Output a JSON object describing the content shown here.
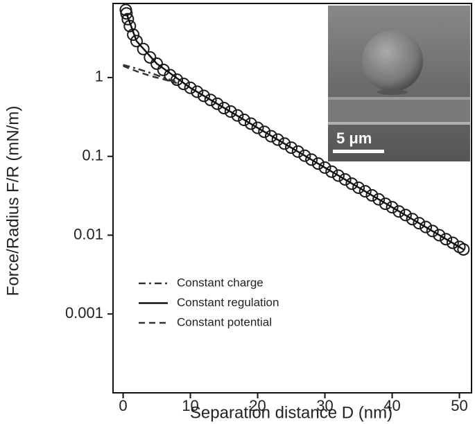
{
  "chart_data": {
    "type": "scatter",
    "xlabel": "Separation distance D (nm)",
    "ylabel": "Force/Radius F/R (mN/m)",
    "xlim": [
      -1.5,
      51.8
    ],
    "ylim": [
      0.0001,
      8.7
    ],
    "yscale": "log",
    "xticks": [
      0,
      10,
      20,
      30,
      40,
      50
    ],
    "yticks": [
      1,
      0.1,
      0.01,
      0.001
    ],
    "inset_scale_label": "5 μm",
    "legend": "lower left",
    "series": [
      {
        "style": "markers",
        "color": "#1a1a1a",
        "x": [
          0.4,
          0.5,
          0.7,
          1,
          1.5,
          2,
          3,
          4,
          5,
          6,
          7,
          8,
          9,
          10,
          11,
          12,
          13,
          14,
          15,
          16,
          17,
          18,
          19,
          20,
          21,
          22,
          23,
          24,
          25,
          26,
          27,
          28,
          29,
          30,
          31,
          32,
          33,
          34,
          35,
          36,
          37,
          38,
          39,
          40,
          41,
          42,
          43,
          44,
          45,
          46,
          47,
          48,
          49,
          50,
          50.6
        ],
        "values": [
          7.2,
          6.5,
          5.5,
          4.5,
          3.5,
          2.9,
          2.3,
          1.8,
          1.5,
          1.25,
          1.07,
          0.94,
          0.83,
          0.74,
          0.66,
          0.585,
          0.52,
          0.465,
          0.41,
          0.37,
          0.33,
          0.29,
          0.26,
          0.23,
          0.205,
          0.18,
          0.163,
          0.145,
          0.129,
          0.115,
          0.102,
          0.091,
          0.081,
          0.072,
          0.064,
          0.057,
          0.051,
          0.045,
          0.04,
          0.036,
          0.032,
          0.0285,
          0.025,
          0.0226,
          0.02,
          0.018,
          0.016,
          0.0142,
          0.0127,
          0.0113,
          0.01,
          0.0089,
          0.008,
          0.0071,
          0.0066
        ]
      },
      {
        "name": "Constant charge",
        "style": "dashdot",
        "color": "#333333",
        "x": [
          0,
          2,
          4,
          6,
          8
        ],
        "values": [
          1.45,
          1.3,
          1.15,
          1.0,
          0.88
        ]
      },
      {
        "name": "Constant regulation",
        "style": "solid",
        "color": "#111111",
        "x": [
          0.5,
          2,
          5,
          10,
          20,
          30,
          40,
          50.6
        ],
        "values": [
          6.5,
          2.9,
          1.5,
          0.74,
          0.23,
          0.072,
          0.0226,
          0.0066
        ]
      },
      {
        "name": "Constant potential",
        "style": "dashed",
        "color": "#333333",
        "x": [
          0,
          2,
          4,
          6,
          8
        ],
        "values": [
          1.4,
          1.2,
          1.05,
          0.95,
          0.85
        ]
      }
    ]
  }
}
